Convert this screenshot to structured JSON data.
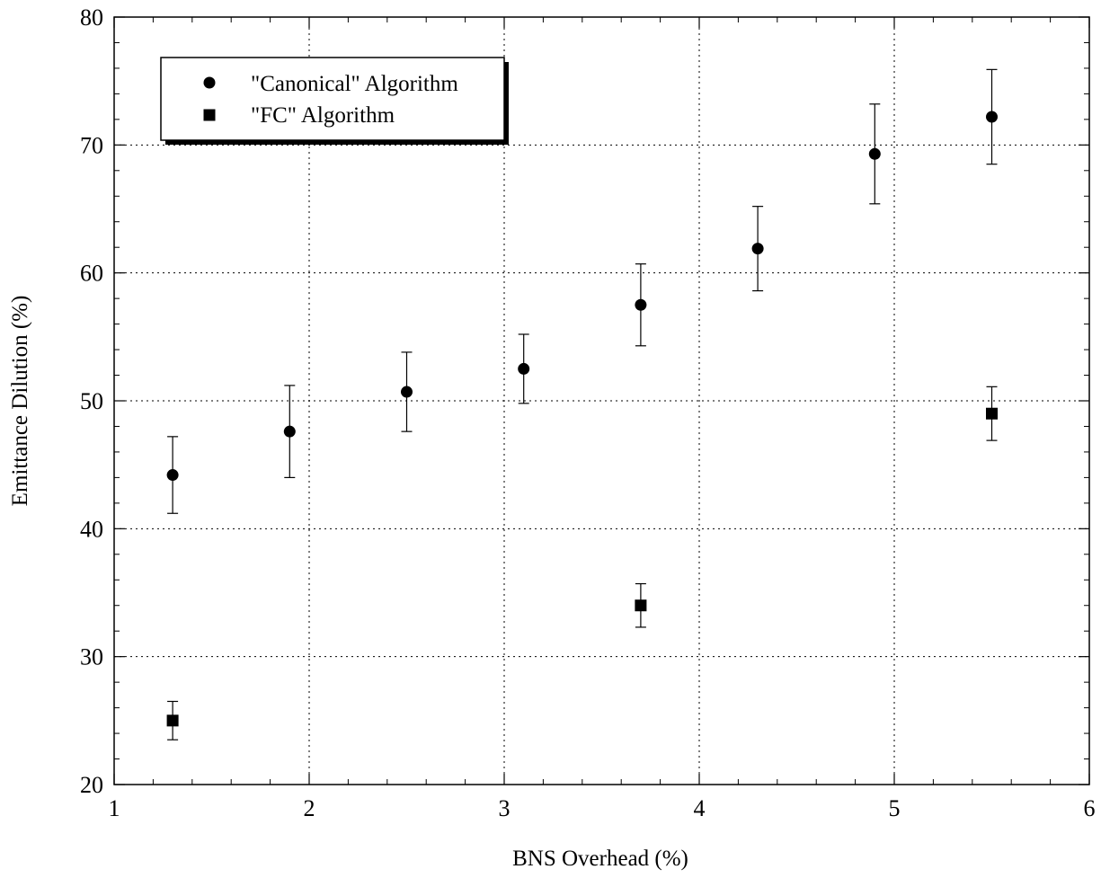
{
  "chart_data": {
    "type": "scatter",
    "title": "",
    "xlabel": "BNS Overhead (%)",
    "ylabel": "Emittance Dilution (%)",
    "xlim": [
      1,
      6
    ],
    "ylim": [
      20,
      80
    ],
    "x_ticks": [
      "1",
      "2",
      "3",
      "4",
      "5",
      "6"
    ],
    "y_ticks": [
      "20",
      "30",
      "40",
      "50",
      "60",
      "70",
      "80"
    ],
    "grid": true,
    "legend_position": "top-left",
    "series": [
      {
        "name": "\"Canonical\" Algorithm",
        "marker": "circle",
        "color": "#000000",
        "points": [
          {
            "x": 1.3,
            "y": 44.2,
            "err_low": 41.2,
            "err_high": 47.2
          },
          {
            "x": 1.9,
            "y": 47.6,
            "err_low": 44.0,
            "err_high": 51.2
          },
          {
            "x": 2.5,
            "y": 50.7,
            "err_low": 47.6,
            "err_high": 53.8
          },
          {
            "x": 3.1,
            "y": 52.5,
            "err_low": 49.8,
            "err_high": 55.2
          },
          {
            "x": 3.7,
            "y": 57.5,
            "err_low": 54.3,
            "err_high": 60.7
          },
          {
            "x": 4.3,
            "y": 61.9,
            "err_low": 58.6,
            "err_high": 65.2
          },
          {
            "x": 4.9,
            "y": 69.3,
            "err_low": 65.4,
            "err_high": 73.2
          },
          {
            "x": 5.5,
            "y": 72.2,
            "err_low": 68.5,
            "err_high": 75.9
          }
        ]
      },
      {
        "name": "\"FC\" Algorithm",
        "marker": "square",
        "color": "#000000",
        "points": [
          {
            "x": 1.3,
            "y": 25.0,
            "err_low": 23.5,
            "err_high": 26.5
          },
          {
            "x": 3.7,
            "y": 34.0,
            "err_low": 32.3,
            "err_high": 35.7
          },
          {
            "x": 5.5,
            "y": 49.0,
            "err_low": 46.9,
            "err_high": 51.1
          }
        ]
      }
    ]
  }
}
